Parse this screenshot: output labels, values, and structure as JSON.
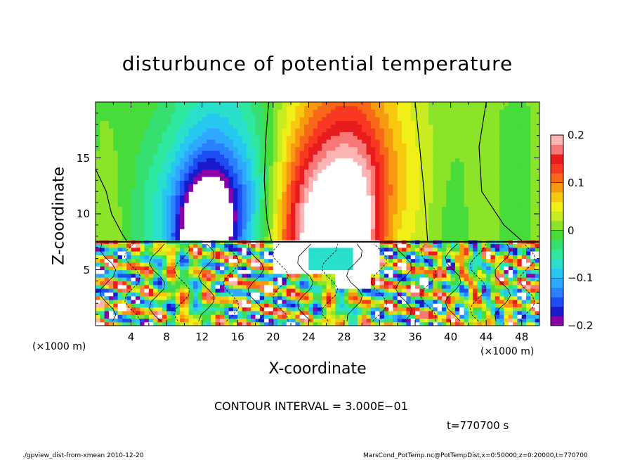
{
  "chart_data": {
    "type": "heatmap",
    "title": "disturbunce of potential temperature",
    "xlabel": "X-coordinate",
    "ylabel": "Z-coordinate",
    "x_unit": "(×1000 m)",
    "xlim": [
      0,
      50
    ],
    "ylim": [
      0,
      20
    ],
    "x_ticks": [
      "4",
      "8",
      "12",
      "16",
      "20",
      "24",
      "28",
      "32",
      "36",
      "40",
      "44",
      "48"
    ],
    "y_ticks": [
      "5",
      "10",
      "15"
    ],
    "colorbar": {
      "range": [
        -0.2,
        0.2
      ],
      "tick_labels": [
        "0.2",
        "0.1",
        "0",
        "−0.1",
        "−0.2"
      ],
      "colors": [
        "#8c00a8",
        "#1a1acc",
        "#1f4df5",
        "#2b80ff",
        "#2fa8ff",
        "#26c8f0",
        "#28e0cc",
        "#2ee8a0",
        "#36e070",
        "#48dc3a",
        "#8ce428",
        "#c8ec20",
        "#f0f018",
        "#f8c810",
        "#f89a10",
        "#f86818",
        "#f83820",
        "#e81c1c",
        "#f87878",
        "#fcb4b4"
      ]
    },
    "features": [
      {
        "x": 12.5,
        "z_range": [
          7.5,
          20
        ],
        "value": -0.17
      },
      {
        "x": 27.5,
        "z_range": [
          7.5,
          20
        ],
        "value": 0.15
      },
      {
        "x": 45,
        "z_range": [
          7.5,
          20
        ],
        "value": 0.0
      },
      {
        "x": 2,
        "z_range": [
          7.5,
          20
        ],
        "value": 0.0
      }
    ],
    "boundary_z": 7.5
  },
  "contour_interval": "CONTOUR INTERVAL = 3.000E−01",
  "time": "t=770700 s",
  "footer_left": "./gpview_dist-from-xmean  2010-12-20",
  "footer_right": "MarsCond_PotTemp.nc@PotTempDist,x=0:50000,z=0:20000,t=770700"
}
